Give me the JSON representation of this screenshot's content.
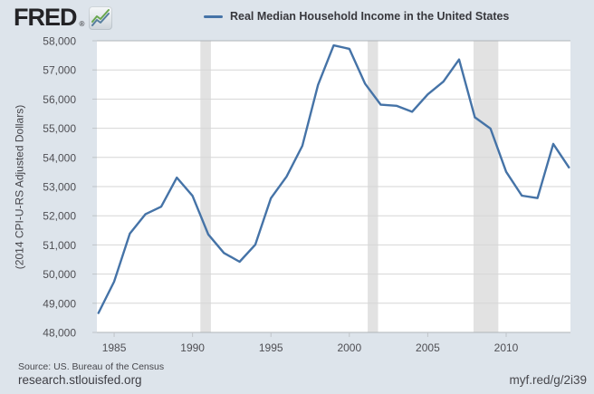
{
  "header": {
    "logo_text": "FRED",
    "logo_reg": "®"
  },
  "legend": {
    "label": "Real Median Household Income in the United States"
  },
  "y_axis_title": "(2014 CPI-U-RS Adjusted Dollars)",
  "footer": {
    "source": "Source: US. Bureau of the Census",
    "site": "research.stlouisfed.org",
    "shortlink": "myf.red/g/2i39"
  },
  "colors": {
    "background": "#dde4eb",
    "plot_background": "#ffffff",
    "line": "#4573a7",
    "gridline": "#d6d6d6",
    "frame": "#b0b4b8",
    "tick": "#c0c4c8",
    "tick_text": "#4f4f54",
    "recession_band": "#e2e2e2",
    "logo_green": "#69a74e",
    "logo_blue": "#567e9e"
  },
  "chart_data": {
    "type": "line",
    "title": "Real Median Household Income in the United States",
    "xlabel": "",
    "ylabel": "(2014 CPI-U-RS Adjusted Dollars)",
    "x": [
      1984,
      1985,
      1986,
      1987,
      1988,
      1989,
      1990,
      1991,
      1992,
      1993,
      1994,
      1995,
      1996,
      1997,
      1998,
      1999,
      2000,
      2001,
      2002,
      2003,
      2004,
      2005,
      2006,
      2007,
      2008,
      2009,
      2010,
      2011,
      2012,
      2013,
      2014
    ],
    "values": [
      48664,
      49739,
      51388,
      52056,
      52312,
      53306,
      52684,
      51360,
      50725,
      50421,
      51006,
      52604,
      53345,
      54399,
      56483,
      57843,
      57724,
      56531,
      55807,
      55770,
      55565,
      56160,
      56598,
      57357,
      55376,
      54988,
      53507,
      52690,
      52605,
      54462,
      53657
    ],
    "ylim": [
      48000,
      58000
    ],
    "xlim": [
      1983.9,
      2014.1
    ],
    "y_ticks": [
      48000,
      49000,
      50000,
      51000,
      52000,
      53000,
      54000,
      55000,
      56000,
      57000,
      58000
    ],
    "x_ticks": [
      1985,
      1990,
      1995,
      2000,
      2005,
      2010
    ],
    "grid": true,
    "legend_position": "top-center",
    "recession_bands": [
      {
        "start": 1990.5,
        "end": 1991.17
      },
      {
        "start": 2001.17,
        "end": 2001.83
      },
      {
        "start": 2007.92,
        "end": 2009.5
      }
    ]
  }
}
